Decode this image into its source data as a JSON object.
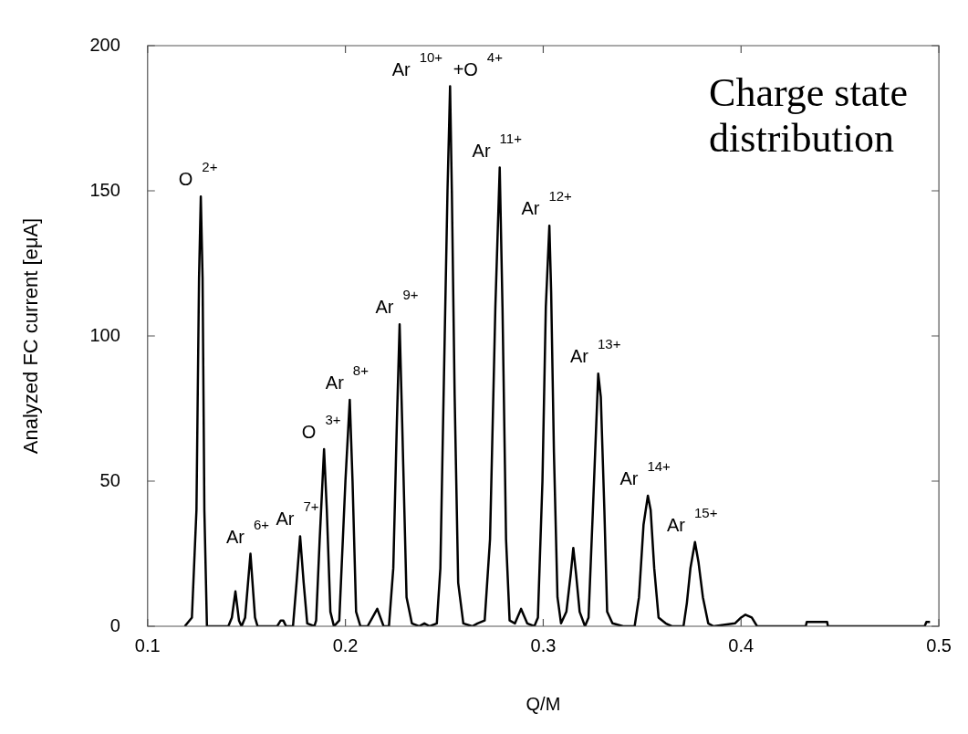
{
  "chart_data": {
    "type": "line",
    "xlabel": "Q/M",
    "ylabel": "Analyzed FC current [eμA]",
    "xlim": [
      0.1,
      0.5
    ],
    "xticks": [
      0.1,
      0.2,
      0.3,
      0.4,
      0.5
    ],
    "ylim": [
      0,
      200
    ],
    "yticks": [
      0,
      50,
      100,
      150,
      200
    ],
    "grid": false,
    "legend": false,
    "marker": "none",
    "line_style": "solid",
    "series": [
      {
        "color": "#000000",
        "x": [
          0.1188,
          0.1224,
          0.1247,
          0.126,
          0.1269,
          0.1278,
          0.1287,
          0.13,
          0.1408,
          0.1426,
          0.1444,
          0.1462,
          0.1475,
          0.1493,
          0.152,
          0.1543,
          0.1556,
          0.1655,
          0.1673,
          0.1686,
          0.17,
          0.1735,
          0.1753,
          0.1771,
          0.1789,
          0.1807,
          0.1843,
          0.1852,
          0.187,
          0.1892,
          0.1906,
          0.1924,
          0.1942,
          0.1969,
          0.2,
          0.2022,
          0.2036,
          0.2054,
          0.2076,
          0.2112,
          0.2161,
          0.2193,
          0.222,
          0.2242,
          0.226,
          0.2274,
          0.2287,
          0.2309,
          0.2336,
          0.2372,
          0.2399,
          0.2426,
          0.2462,
          0.248,
          0.2502,
          0.2516,
          0.2529,
          0.2538,
          0.2552,
          0.257,
          0.2596,
          0.2641,
          0.2668,
          0.2704,
          0.2731,
          0.2758,
          0.278,
          0.2794,
          0.2812,
          0.283,
          0.2857,
          0.2888,
          0.2919,
          0.2955,
          0.2973,
          0.2996,
          0.3013,
          0.3031,
          0.304,
          0.3054,
          0.3072,
          0.309,
          0.3117,
          0.3139,
          0.3152,
          0.3166,
          0.3184,
          0.3211,
          0.3229,
          0.3251,
          0.3278,
          0.3291,
          0.3309,
          0.3323,
          0.335,
          0.3404,
          0.3462,
          0.3484,
          0.3507,
          0.3529,
          0.3543,
          0.3561,
          0.3583,
          0.3619,
          0.365,
          0.3709,
          0.3726,
          0.3744,
          0.3767,
          0.3785,
          0.3807,
          0.3834,
          0.3861,
          0.3969,
          0.4,
          0.4022,
          0.4054,
          0.4081,
          0.4327,
          0.4332,
          0.4435,
          0.4439,
          0.4928,
          0.4937,
          0.4955
        ],
        "values": [
          0,
          3,
          40,
          120,
          148,
          120,
          40,
          0,
          0,
          3,
          12,
          2,
          0,
          3,
          25,
          3,
          0,
          0,
          2,
          2,
          0,
          0,
          15,
          31,
          15,
          1,
          0,
          2,
          30,
          61,
          40,
          5,
          0,
          2,
          50,
          78,
          50,
          5,
          0,
          0,
          6,
          0,
          0,
          20,
          70,
          104,
          70,
          10,
          1,
          0,
          1,
          0,
          1,
          20,
          100,
          150,
          186,
          150,
          80,
          15,
          1,
          0,
          1,
          2,
          30,
          110,
          158,
          110,
          30,
          2,
          1,
          6,
          1,
          0,
          3,
          50,
          110,
          138,
          115,
          60,
          10,
          1,
          5,
          18,
          27,
          18,
          5,
          0,
          3,
          40,
          87,
          79,
          40,
          5,
          1,
          0,
          0,
          10,
          35,
          45,
          40,
          20,
          3,
          1,
          0,
          0,
          8,
          20,
          29,
          22,
          10,
          1,
          0,
          1,
          3,
          4,
          3,
          0,
          0,
          1.5,
          1.5,
          0,
          0,
          1.5,
          1.5
        ]
      }
    ],
    "annotations": [
      {
        "text": "O$^{2+}$",
        "x": 0.1269,
        "y": 148
      },
      {
        "text": "Ar$^{6+}$",
        "x": 0.152,
        "y": 25
      },
      {
        "text": "Ar$^{7+}$",
        "x": 0.1771,
        "y": 31
      },
      {
        "text": "O$^{3+}$",
        "x": 0.1892,
        "y": 61
      },
      {
        "text": "Ar$^{8+}$",
        "x": 0.2022,
        "y": 78
      },
      {
        "text": "Ar$^{9+}$",
        "x": 0.2274,
        "y": 104
      },
      {
        "text": "Ar$^{10+}$ +O$^{4+}$",
        "x": 0.2529,
        "y": 186
      },
      {
        "text": "Ar$^{11+}$",
        "x": 0.278,
        "y": 158
      },
      {
        "text": "Ar$^{12+}$",
        "x": 0.3031,
        "y": 138
      },
      {
        "text": "Ar$^{13+}$",
        "x": 0.3278,
        "y": 87
      },
      {
        "text": "Ar$^{14+}$",
        "x": 0.3529,
        "y": 45
      },
      {
        "text": "Ar$^{15+}$",
        "x": 0.3767,
        "y": 29
      },
      "Charge state distribution"
    ]
  }
}
